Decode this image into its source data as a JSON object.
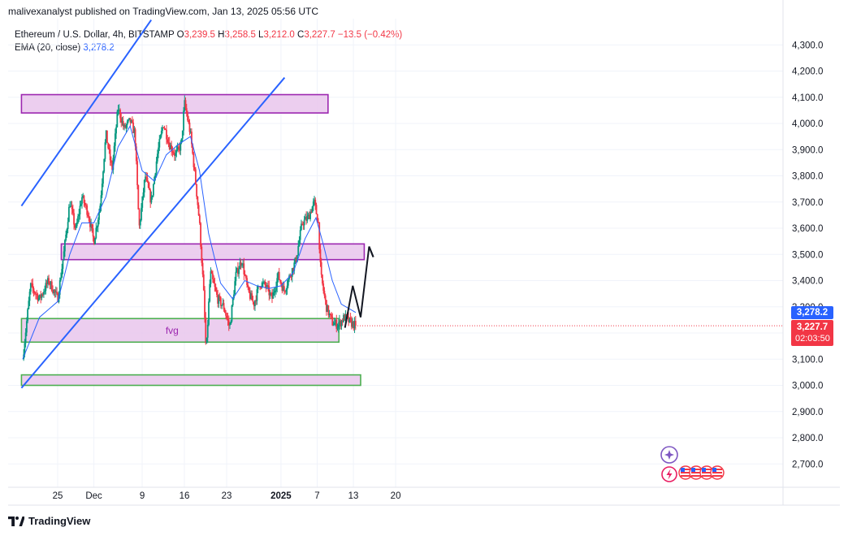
{
  "header": {
    "publisher": "malivexanalyst published on TradingView.com, Jan 13, 2025 05:56 UTC"
  },
  "legend": {
    "symbol": "Ethereum / U.S. Dollar, 4h, BITSTAMP",
    "o_label": "O",
    "o_value": "3,239.5",
    "h_label": "H",
    "h_value": "3,258.5",
    "l_label": "L",
    "l_value": "3,212.0",
    "c_label": "C",
    "c_value": "3,227.7",
    "change": "−13.5 (−0.42%)",
    "ema_label": "EMA (20, close)",
    "ema_value": "3,278.2"
  },
  "badges": {
    "ema": "3,278.2",
    "price": "3,227.7",
    "countdown": "02:03:50"
  },
  "footer": {
    "brand": "TradingView"
  },
  "colors": {
    "up": "#089981",
    "down": "#f23645",
    "ema": "#2962ff",
    "trendline": "#2962ff",
    "zone_fill": "#e9c6ec",
    "purple_border": "#9c27b0",
    "green_border": "#4caf50",
    "fvg_text": "#9c27b0",
    "grid": "#f0f3fa"
  },
  "chart_data": {
    "type": "candlestick",
    "timeframe": "4h",
    "ylim": [
      2620,
      4370
    ],
    "y_ticks": [
      2700,
      2800,
      2900,
      3000,
      3100,
      3200,
      3300,
      3400,
      3500,
      3600,
      3700,
      3800,
      3900,
      4000,
      4100,
      4200,
      4300
    ],
    "y_tick_labels": [
      "2,700.0",
      "2,800.0",
      "2,900.0",
      "3,000.0",
      "3,100.0",
      "3,200.0",
      "3,300.0",
      "3,400.0",
      "3,500.0",
      "3,600.0",
      "3,700.0",
      "3,800.0",
      "3,900.0",
      "4,000.0",
      "4,100.0",
      "4,200.0",
      "4,300.0"
    ],
    "x_ticks": [
      {
        "label": "25",
        "t": 0
      },
      {
        "label": "Dec",
        "t": 6
      },
      {
        "label": "9",
        "t": 14
      },
      {
        "label": "16",
        "t": 21
      },
      {
        "label": "23",
        "t": 28
      },
      {
        "label": "2025",
        "t": 37
      },
      {
        "label": "7",
        "t": 43
      },
      {
        "label": "13",
        "t": 49
      },
      {
        "label": "20",
        "t": 56
      }
    ],
    "x_unit": "days since Nov 25, 2024",
    "price_path": [
      [
        -5.8,
        3100
      ],
      [
        -4.5,
        3380
      ],
      [
        -3,
        3330
      ],
      [
        -1.5,
        3400
      ],
      [
        0,
        3330
      ],
      [
        1,
        3500
      ],
      [
        2,
        3700
      ],
      [
        3,
        3590
      ],
      [
        4,
        3720
      ],
      [
        5,
        3660
      ],
      [
        6,
        3550
      ],
      [
        7,
        3680
      ],
      [
        8,
        3960
      ],
      [
        9,
        3820
      ],
      [
        10,
        4060
      ],
      [
        11,
        3980
      ],
      [
        12,
        4010
      ],
      [
        12.8,
        3960
      ],
      [
        13.5,
        3600
      ],
      [
        14.5,
        3800
      ],
      [
        15.5,
        3700
      ],
      [
        16.5,
        3880
      ],
      [
        17.5,
        4000
      ],
      [
        18.5,
        3920
      ],
      [
        19.5,
        3880
      ],
      [
        20.5,
        3920
      ],
      [
        21,
        4080
      ],
      [
        22,
        3960
      ],
      [
        22.8,
        3790
      ],
      [
        23.5,
        3620
      ],
      [
        24.2,
        3350
      ],
      [
        24.6,
        3120
      ],
      [
        25.3,
        3430
      ],
      [
        26.5,
        3330
      ],
      [
        27.5,
        3300
      ],
      [
        28.5,
        3220
      ],
      [
        29.5,
        3420
      ],
      [
        30.5,
        3480
      ],
      [
        31.5,
        3360
      ],
      [
        32.5,
        3310
      ],
      [
        33.5,
        3390
      ],
      [
        34.5,
        3380
      ],
      [
        35.5,
        3330
      ],
      [
        36.5,
        3420
      ],
      [
        37.5,
        3360
      ],
      [
        38.5,
        3420
      ],
      [
        39.5,
        3480
      ],
      [
        40.5,
        3620
      ],
      [
        41.5,
        3640
      ],
      [
        42.5,
        3700
      ],
      [
        43.2,
        3620
      ],
      [
        43.6,
        3420
      ],
      [
        44.5,
        3300
      ],
      [
        45.5,
        3240
      ],
      [
        46.5,
        3230
      ],
      [
        47.5,
        3260
      ],
      [
        48.5,
        3240
      ],
      [
        49.4,
        3228
      ]
    ],
    "ema": {
      "name": "EMA (20, close)",
      "path": [
        [
          -5.8,
          3100
        ],
        [
          -3,
          3260
        ],
        [
          0,
          3320
        ],
        [
          2,
          3500
        ],
        [
          4,
          3620
        ],
        [
          6,
          3620
        ],
        [
          8,
          3720
        ],
        [
          10,
          3910
        ],
        [
          12,
          3990
        ],
        [
          14,
          3820
        ],
        [
          16,
          3780
        ],
        [
          18,
          3880
        ],
        [
          20,
          3920
        ],
        [
          22,
          3950
        ],
        [
          23.5,
          3820
        ],
        [
          25,
          3580
        ],
        [
          27,
          3390
        ],
        [
          29,
          3330
        ],
        [
          31,
          3400
        ],
        [
          33,
          3380
        ],
        [
          35,
          3370
        ],
        [
          37,
          3380
        ],
        [
          39,
          3430
        ],
        [
          41,
          3560
        ],
        [
          42.8,
          3640
        ],
        [
          44,
          3540
        ],
        [
          45.5,
          3400
        ],
        [
          47,
          3310
        ],
        [
          49.4,
          3278
        ]
      ]
    },
    "zones": [
      {
        "type": "resistance",
        "t_start": -6,
        "t_end": 44.8,
        "y_low": 4040,
        "y_high": 4110
      },
      {
        "type": "support",
        "t_start": 0.6,
        "t_end": 50.8,
        "y_low": 3480,
        "y_high": 3540
      },
      {
        "type": "fvg",
        "label": "fvg",
        "t_start": -6,
        "t_end": 46.6,
        "y_low": 3165,
        "y_high": 3255
      },
      {
        "type": "support",
        "t_start": -6,
        "t_end": 50.2,
        "y_low": 3000,
        "y_high": 3040
      }
    ],
    "trendlines": [
      {
        "t0": -6,
        "y0": 3685,
        "t1": 15.5,
        "y1": 4395
      },
      {
        "t0": -6,
        "y0": 2990,
        "t1": 37.6,
        "y1": 4175
      }
    ],
    "projection": [
      [
        47.6,
        3220
      ],
      [
        48.9,
        3380
      ],
      [
        50.2,
        3260
      ],
      [
        51.6,
        3530
      ],
      [
        52.3,
        3490
      ]
    ],
    "last_price": 3227.7
  }
}
